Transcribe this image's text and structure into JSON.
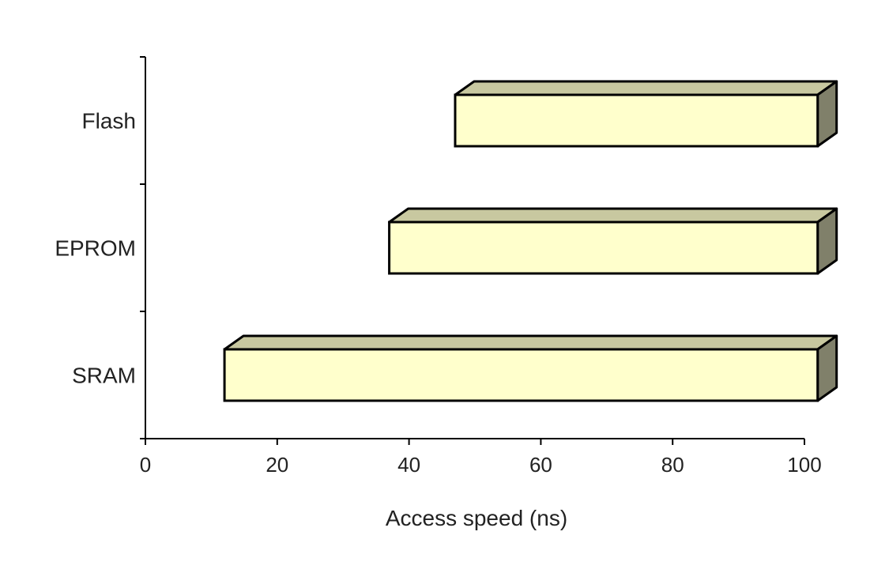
{
  "chart_data": {
    "type": "bar",
    "orientation": "horizontal",
    "style": "3d-floating-range",
    "categories": [
      "SRAM",
      "EPROM",
      "Flash"
    ],
    "series": [
      {
        "ranges": [
          [
            12,
            102
          ],
          [
            37,
            102
          ],
          [
            47,
            102
          ]
        ]
      }
    ],
    "xlabel": "Access speed (ns)",
    "ylabel": "",
    "title": "",
    "xlim": [
      0,
      100
    ],
    "x_ticks": [
      0,
      20,
      40,
      60,
      80,
      100
    ],
    "x_tick_labels": [
      "0",
      "20",
      "40",
      "60",
      "80",
      "100"
    ],
    "grid": false,
    "legend": "none"
  },
  "colors": {
    "bar_front": "#ffffcc",
    "bar_top": "#c8c8a0",
    "bar_side": "#80806a",
    "bar_outline": "#000000",
    "axis": "#000000",
    "text": "#222222"
  }
}
